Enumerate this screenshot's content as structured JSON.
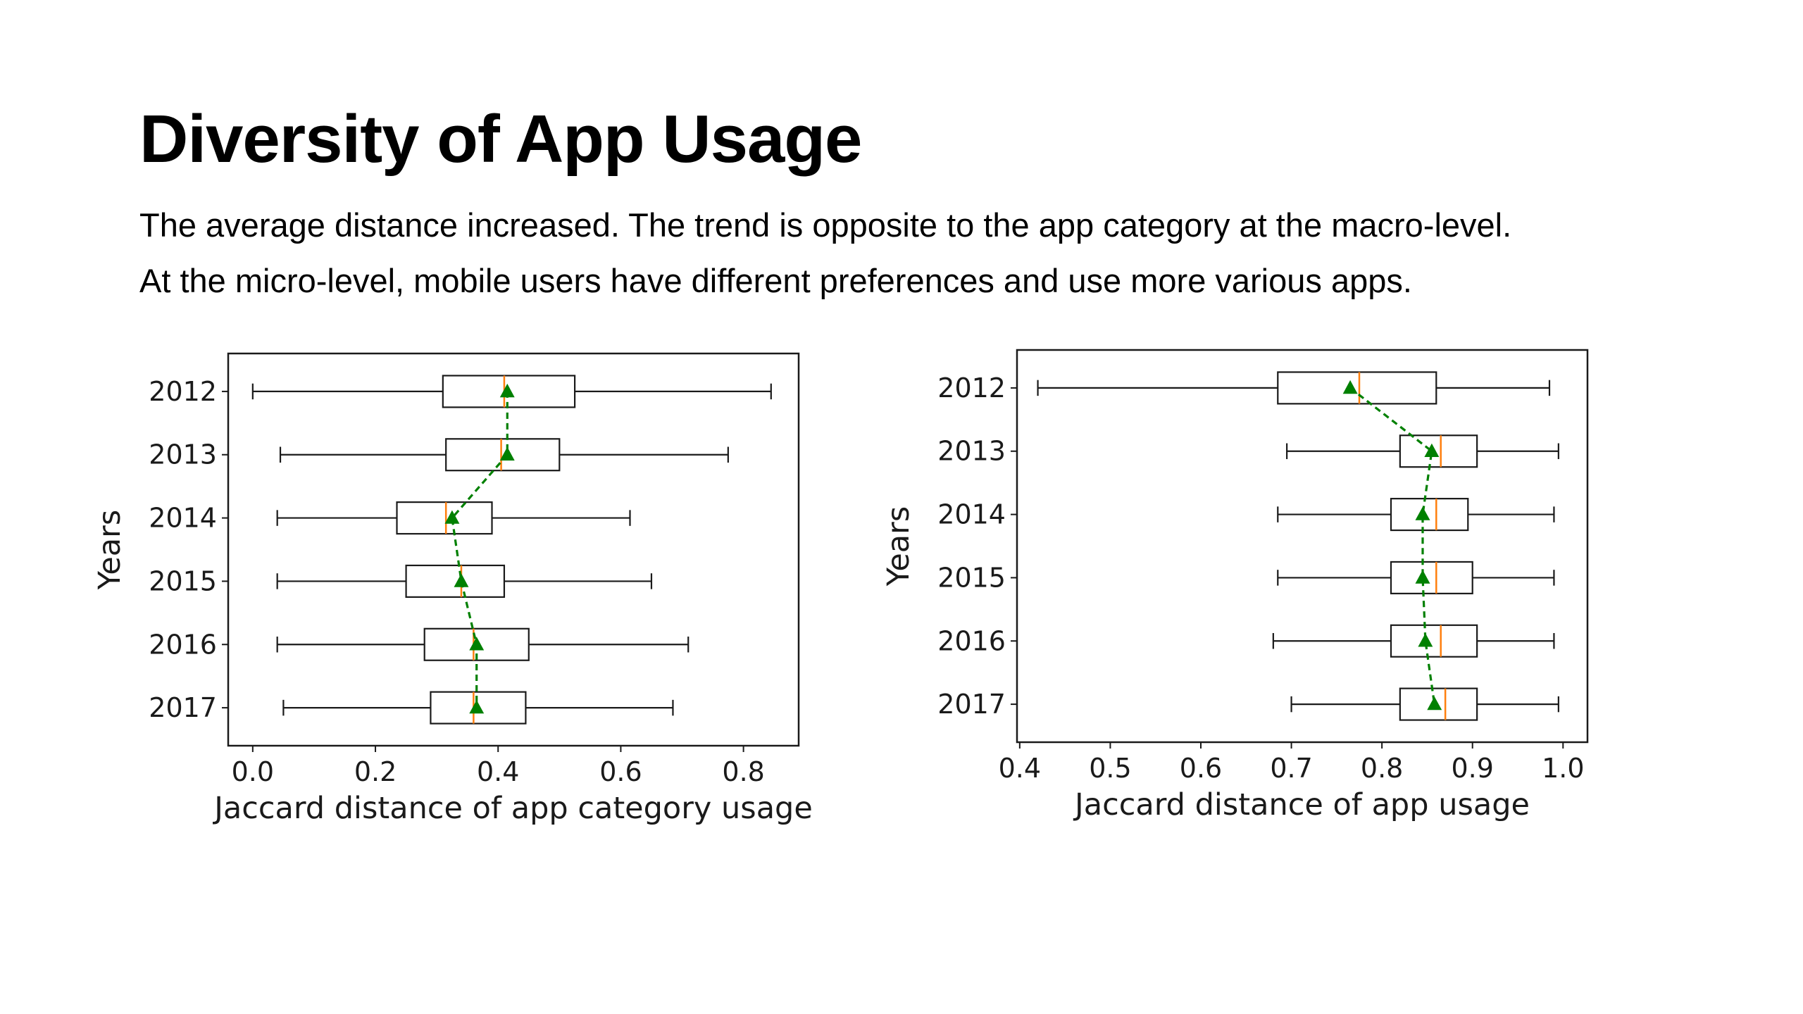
{
  "slide": {
    "title": "Diversity of App Usage",
    "subtitle_line1": "The average distance increased. The trend is opposite to the app category at the macro-level.",
    "subtitle_line2": "At the micro-level, mobile users have different preferences and use more various apps."
  },
  "colors": {
    "box": "#1a1a1a",
    "median": "#ff7f0e",
    "mean": "#008000"
  },
  "chart_data": [
    {
      "type": "box",
      "orientation": "horizontal",
      "xlabel": "Jaccard distance of app category usage",
      "ylabel": "Years",
      "xlim": [
        -0.04,
        0.89
      ],
      "xticks": [
        0.0,
        0.2,
        0.4,
        0.6,
        0.8
      ],
      "xtick_labels": [
        "0.0",
        "0.2",
        "0.4",
        "0.6",
        "0.8"
      ],
      "grid": false,
      "mean_line_style": "dashed",
      "categories": [
        "2012",
        "2013",
        "2014",
        "2015",
        "2016",
        "2017"
      ],
      "boxes": [
        {
          "year": "2012",
          "whisker_low": 0.0,
          "q1": 0.31,
          "median": 0.41,
          "q3": 0.525,
          "whisker_high": 0.845,
          "mean": 0.415
        },
        {
          "year": "2013",
          "whisker_low": 0.045,
          "q1": 0.315,
          "median": 0.405,
          "q3": 0.5,
          "whisker_high": 0.775,
          "mean": 0.415
        },
        {
          "year": "2014",
          "whisker_low": 0.04,
          "q1": 0.235,
          "median": 0.315,
          "q3": 0.39,
          "whisker_high": 0.615,
          "mean": 0.325
        },
        {
          "year": "2015",
          "whisker_low": 0.04,
          "q1": 0.25,
          "median": 0.34,
          "q3": 0.41,
          "whisker_high": 0.65,
          "mean": 0.34
        },
        {
          "year": "2016",
          "whisker_low": 0.04,
          "q1": 0.28,
          "median": 0.36,
          "q3": 0.45,
          "whisker_high": 0.71,
          "mean": 0.365
        },
        {
          "year": "2017",
          "whisker_low": 0.05,
          "q1": 0.29,
          "median": 0.36,
          "q3": 0.445,
          "whisker_high": 0.685,
          "mean": 0.365
        }
      ]
    },
    {
      "type": "box",
      "orientation": "horizontal",
      "xlabel": "Jaccard distance of app usage",
      "ylabel": "Years",
      "xlim": [
        0.397,
        1.027
      ],
      "xticks": [
        0.4,
        0.5,
        0.6,
        0.7,
        0.8,
        0.9,
        1.0
      ],
      "xtick_labels": [
        "0.4",
        "0.5",
        "0.6",
        "0.7",
        "0.8",
        "0.9",
        "1.0"
      ],
      "grid": false,
      "mean_line_style": "dashed",
      "categories": [
        "2012",
        "2013",
        "2014",
        "2015",
        "2016",
        "2017"
      ],
      "boxes": [
        {
          "year": "2012",
          "whisker_low": 0.42,
          "q1": 0.685,
          "median": 0.775,
          "q3": 0.86,
          "whisker_high": 0.985,
          "mean": 0.765
        },
        {
          "year": "2013",
          "whisker_low": 0.695,
          "q1": 0.82,
          "median": 0.865,
          "q3": 0.905,
          "whisker_high": 0.995,
          "mean": 0.855
        },
        {
          "year": "2014",
          "whisker_low": 0.685,
          "q1": 0.81,
          "median": 0.86,
          "q3": 0.895,
          "whisker_high": 0.99,
          "mean": 0.845
        },
        {
          "year": "2015",
          "whisker_low": 0.685,
          "q1": 0.81,
          "median": 0.86,
          "q3": 0.9,
          "whisker_high": 0.99,
          "mean": 0.845
        },
        {
          "year": "2016",
          "whisker_low": 0.68,
          "q1": 0.81,
          "median": 0.865,
          "q3": 0.905,
          "whisker_high": 0.99,
          "mean": 0.848
        },
        {
          "year": "2017",
          "whisker_low": 0.7,
          "q1": 0.82,
          "median": 0.87,
          "q3": 0.905,
          "whisker_high": 0.995,
          "mean": 0.858
        }
      ]
    }
  ]
}
